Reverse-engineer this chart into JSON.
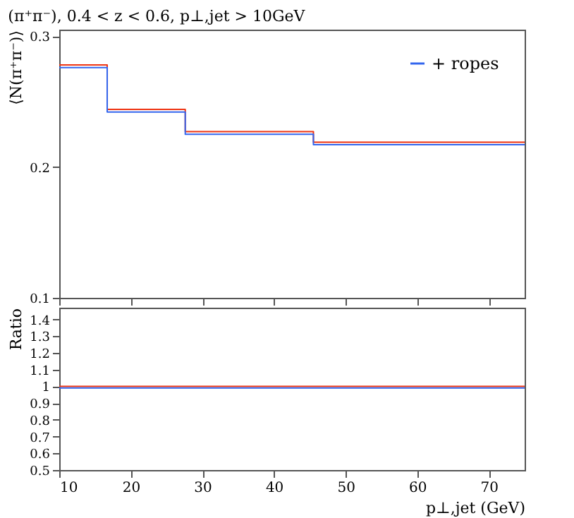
{
  "chart_data": [
    {
      "type": "histogram",
      "title": "(π⁺π⁻), 0.4 < z < 0.6, p⊥,jet > 10GeV",
      "ylabel": "⟨N(π⁺π⁻)⟩",
      "bins": [
        10,
        16.7,
        27.6,
        45.5,
        75
      ],
      "series": [
        {
          "color": "#ee3311",
          "values": [
            0.278,
            0.244,
            0.227,
            0.219
          ]
        },
        {
          "name": "+ ropes",
          "color": "#3366ee",
          "values": [
            0.276,
            0.242,
            0.225,
            0.217
          ]
        }
      ],
      "xlim": [
        10,
        75
      ],
      "xticks": [
        10,
        20,
        30,
        40,
        50,
        60,
        70
      ],
      "ylim": [
        0.1,
        0.305
      ],
      "yticks": [
        0.1,
        0.2,
        0.3
      ],
      "tick_labels": "y",
      "legend": "top right"
    },
    {
      "type": "histogram",
      "xlabel": "p⊥,jet (GeV)",
      "ylabel": "Ratio",
      "bins": [
        10,
        16.7,
        27.6,
        45.5,
        75
      ],
      "series": [
        {
          "color": "#ee3311",
          "values": [
            1,
            1,
            1,
            1
          ]
        },
        {
          "color": "#3366ee",
          "values": [
            0.99,
            0.99,
            0.99,
            0.99
          ]
        }
      ],
      "xlim": [
        10,
        75
      ],
      "xticks": [
        10,
        20,
        30,
        40,
        50,
        60,
        70
      ],
      "ylim": [
        0.5,
        1.47
      ],
      "yticks": [
        0.5,
        0.6,
        0.7,
        0.8,
        0.9,
        1,
        1.1,
        1.2,
        1.3,
        1.4
      ]
    }
  ]
}
